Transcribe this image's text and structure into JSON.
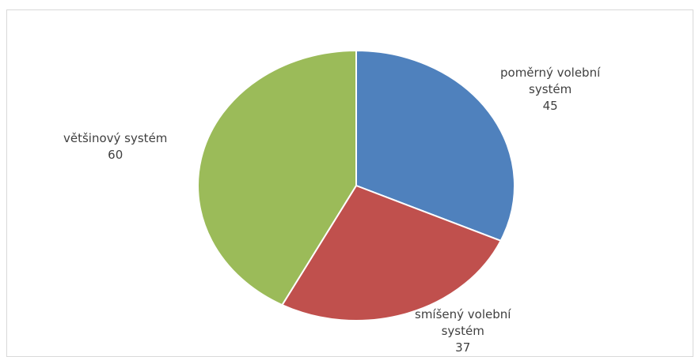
{
  "chart_data": {
    "type": "pie",
    "categories": [
      "poměrný volební systém",
      "smíšený volební systém",
      "většinový systém"
    ],
    "values": [
      45,
      37,
      60
    ],
    "colors": [
      "#4f81bd",
      "#c0504d",
      "#9bbb59"
    ],
    "data_labels": [
      {
        "lines": [
          "poměrný volební",
          "systém"
        ],
        "value": "45"
      },
      {
        "lines": [
          "smíšený volební",
          "systém"
        ],
        "value": "37"
      },
      {
        "lines": [
          "většinový systém"
        ],
        "value": "60"
      }
    ],
    "start_angle": "12 o'clock",
    "direction": "clockwise",
    "legend": "none"
  }
}
